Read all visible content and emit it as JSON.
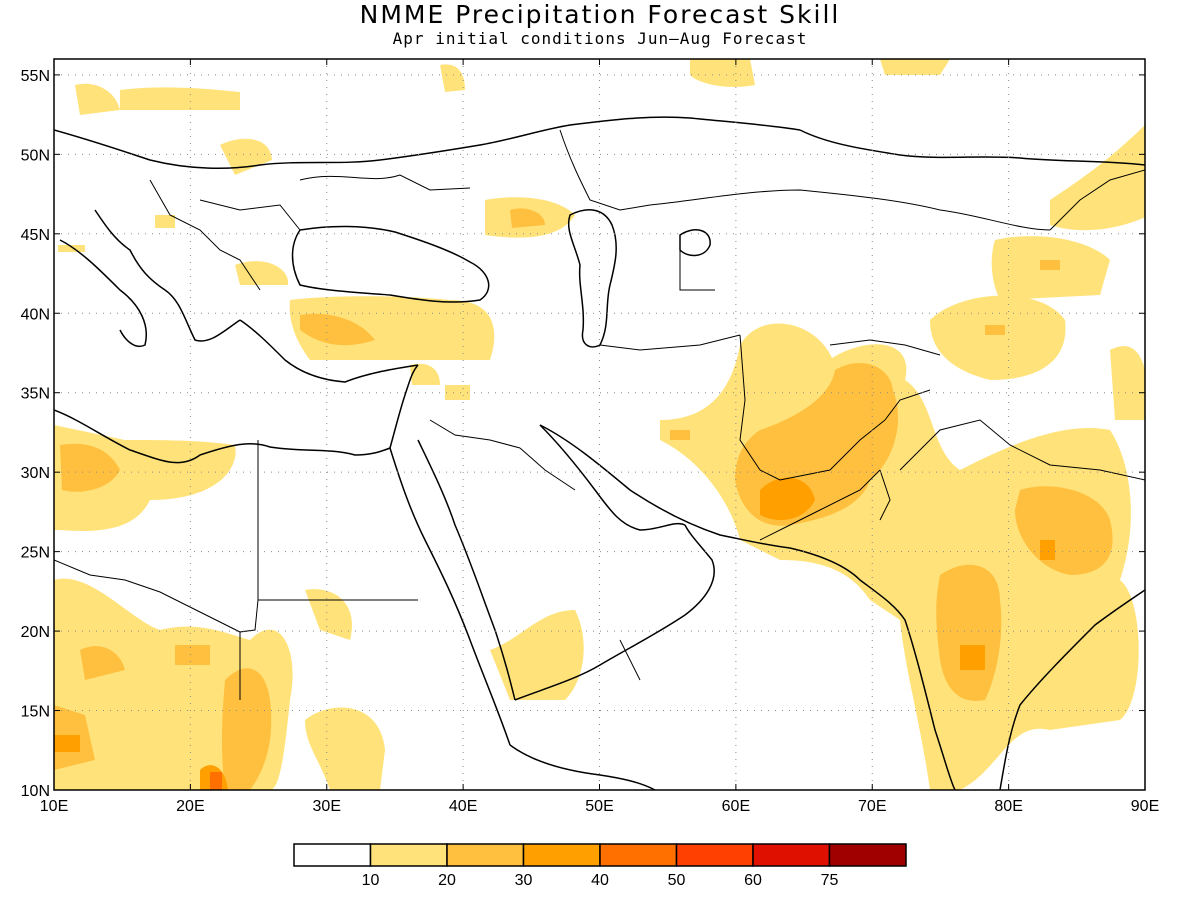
{
  "title": "NMME Precipitation Forecast Skill",
  "subtitle": "Apr initial conditions   Jun–Aug Forecast",
  "map": {
    "lon_range": [
      10,
      90
    ],
    "lat_range": [
      10,
      56
    ],
    "lon_ticks": [
      10,
      20,
      30,
      40,
      50,
      60,
      70,
      80,
      90
    ],
    "lon_labels": [
      "10E",
      "20E",
      "30E",
      "40E",
      "50E",
      "60E",
      "70E",
      "80E",
      "90E"
    ],
    "lat_ticks": [
      10,
      15,
      20,
      25,
      30,
      35,
      40,
      45,
      50,
      55
    ],
    "lat_labels": [
      "10N",
      "15N",
      "20N",
      "25N",
      "30N",
      "35N",
      "40N",
      "45N",
      "50N",
      "55N"
    ],
    "grid": "dotted"
  },
  "legend": {
    "thresholds": [
      "10",
      "20",
      "30",
      "40",
      "50",
      "60",
      "75"
    ],
    "colors": [
      "#ffffff",
      "#ffe37a",
      "#ffc040",
      "#ffa000",
      "#ff7000",
      "#ff4000",
      "#e01000",
      "#a00000"
    ]
  }
}
